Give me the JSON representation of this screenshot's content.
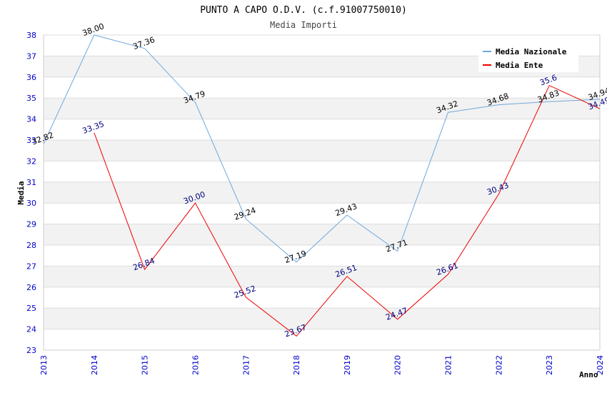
{
  "chart_data": {
    "type": "line",
    "title": "PUNTO A CAPO O.D.V. (c.f.91007750010)",
    "subtitle": "Media Importi",
    "xlabel": "Anno",
    "ylabel": "Media",
    "ylim": [
      23,
      38
    ],
    "y_ticks": [
      "23",
      "24",
      "25",
      "26",
      "27",
      "28",
      "29",
      "30",
      "31",
      "32",
      "33",
      "34",
      "35",
      "36",
      "37",
      "38"
    ],
    "categories": [
      "2013",
      "2014",
      "2015",
      "2016",
      "2017",
      "2018",
      "2019",
      "2020",
      "2021",
      "2022",
      "2023",
      "2024"
    ],
    "series": [
      {
        "name": "Media Nazionale",
        "color": "#6fa8dc",
        "label_color": "#000000",
        "values": [
          32.82,
          38.0,
          37.36,
          34.79,
          29.24,
          27.19,
          29.43,
          27.71,
          34.32,
          34.68,
          34.83,
          34.94
        ],
        "labels": [
          "32.82",
          "38.00",
          "37.36",
          "34.79",
          "29.24",
          "27.19",
          "29.43",
          "27.71",
          "34.32",
          "34.68",
          "34.83",
          "34.94"
        ]
      },
      {
        "name": "Media Ente",
        "color": "#ee0000",
        "label_color": "#000080",
        "values": [
          null,
          33.35,
          26.84,
          30.0,
          25.52,
          23.67,
          26.51,
          24.47,
          26.61,
          30.43,
          35.6,
          34.49
        ],
        "labels": [
          "",
          "33.35",
          "26.84",
          "30.00",
          "25.52",
          "23.67",
          "26.51",
          "24.47",
          "26.61",
          "30.43",
          "35.6",
          "34.49"
        ]
      }
    ],
    "grid": true,
    "legend_position": "top-right"
  }
}
